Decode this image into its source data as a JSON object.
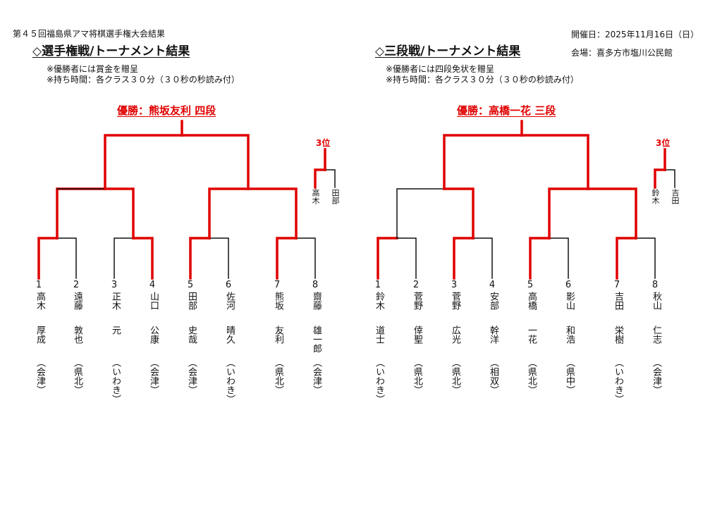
{
  "header": {
    "doc_title": "第４５回福島県アマ将棋選手権大会結果",
    "date": "開催日：2025年11月16日（日）",
    "venue": "会場：喜多方市塩川公民館"
  },
  "tournaments": [
    {
      "title": "◇選手権戦/トーナメント結果",
      "notes": [
        "※優勝者には賞金を贈呈",
        "※持ち時間：各クラス３０分（３０秒の秒読み付）"
      ],
      "champion": "優勝：熊坂友利 四段",
      "third_label": "3位",
      "third_place": [
        {
          "name": "高木"
        },
        {
          "name": "田部"
        }
      ],
      "players": [
        {
          "seed": "1",
          "surname": "高木",
          "given": "厚成",
          "area": "会津"
        },
        {
          "seed": "2",
          "surname": "遠藤",
          "given": "敦也",
          "area": "県北"
        },
        {
          "seed": "3",
          "surname": "正木",
          "given": "元",
          "area": "いわき"
        },
        {
          "seed": "4",
          "surname": "山口",
          "given": "公康",
          "area": "会津"
        },
        {
          "seed": "5",
          "surname": "田部",
          "given": "史哉",
          "area": "会津"
        },
        {
          "seed": "6",
          "surname": "佐河",
          "given": "晴久",
          "area": "いわき"
        },
        {
          "seed": "7",
          "surname": "熊坂",
          "given": "友利",
          "area": "県北"
        },
        {
          "seed": "8",
          "surname": "齋藤",
          "given": "雄一郎",
          "area": "会津"
        }
      ]
    },
    {
      "title": "◇三段戦/トーナメント結果",
      "notes": [
        "※優勝者には四段免状を贈呈",
        "※持ち時間：各クラス３０分（３０秒の秒読み付）"
      ],
      "champion": "優勝：高橋一花 三段",
      "third_label": "3位",
      "third_place": [
        {
          "name": "鈴木"
        },
        {
          "name": "吉田"
        }
      ],
      "players": [
        {
          "seed": "1",
          "surname": "鈴木",
          "given": "道士",
          "area": "いわき"
        },
        {
          "seed": "2",
          "surname": "菅野",
          "given": "倖聖",
          "area": "県北"
        },
        {
          "seed": "3",
          "surname": "菅野",
          "given": "広光",
          "area": "県北"
        },
        {
          "seed": "4",
          "surname": "安部",
          "given": "幹洋",
          "area": "相双"
        },
        {
          "seed": "5",
          "surname": "高橋",
          "given": "一花",
          "area": "県北"
        },
        {
          "seed": "6",
          "surname": "影山",
          "given": "和浩",
          "area": "県中"
        },
        {
          "seed": "7",
          "surname": "吉田",
          "given": "栄樹",
          "area": "いわき"
        },
        {
          "seed": "8",
          "surname": "秋山",
          "given": "仁志",
          "area": "会津"
        }
      ]
    }
  ],
  "colors": {
    "winner_line": "#e00000",
    "loser_line": "#111111",
    "champion_text": "#e00000"
  }
}
